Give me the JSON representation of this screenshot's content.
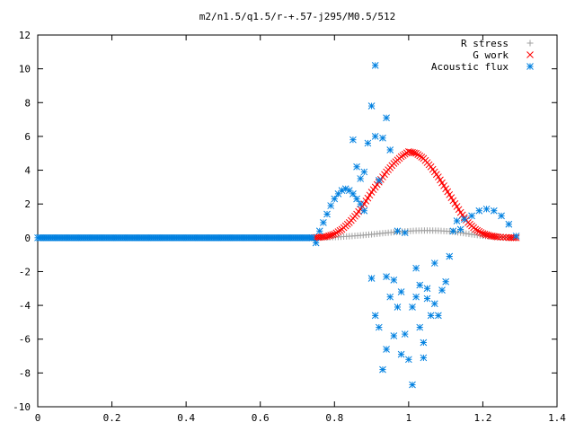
{
  "chart_data": {
    "type": "scatter",
    "title": "m2/n1.5/q1.5/r-+.57-j295/M0.5/512",
    "xlabel": "",
    "ylabel": "",
    "xlim": [
      0,
      1.4
    ],
    "ylim": [
      -10,
      12
    ],
    "xticks": [
      "0",
      "0.2",
      "0.4",
      "0.6",
      "0.8",
      "1",
      "1.2",
      "1.4"
    ],
    "yticks": [
      "-10",
      "-8",
      "-6",
      "-4",
      "-2",
      "0",
      "2",
      "4",
      "6",
      "8",
      "10",
      "12"
    ],
    "grid": false,
    "legend_position": "top-right",
    "series": [
      {
        "name": "R stress",
        "marker": "plus",
        "color": "#a0a0a0",
        "points": [
          [
            0.75,
            0.0
          ],
          [
            0.78,
            0.02
          ],
          [
            0.81,
            0.05
          ],
          [
            0.84,
            0.09
          ],
          [
            0.87,
            0.14
          ],
          [
            0.9,
            0.2
          ],
          [
            0.93,
            0.27
          ],
          [
            0.96,
            0.33
          ],
          [
            0.99,
            0.38
          ],
          [
            1.02,
            0.42
          ],
          [
            1.05,
            0.43
          ],
          [
            1.08,
            0.42
          ],
          [
            1.11,
            0.38
          ],
          [
            1.14,
            0.3
          ],
          [
            1.17,
            0.2
          ],
          [
            1.2,
            0.12
          ],
          [
            1.23,
            0.06
          ],
          [
            1.26,
            0.02
          ],
          [
            1.29,
            0.0
          ]
        ]
      },
      {
        "name": "G work",
        "marker": "cross",
        "color": "#ff0000",
        "points": [
          [
            0.74,
            0.0
          ],
          [
            0.76,
            0.03
          ],
          [
            0.78,
            0.08
          ],
          [
            0.8,
            0.22
          ],
          [
            0.82,
            0.5
          ],
          [
            0.84,
            0.9
          ],
          [
            0.86,
            1.4
          ],
          [
            0.88,
            2.0
          ],
          [
            0.9,
            2.7
          ],
          [
            0.92,
            3.3
          ],
          [
            0.94,
            3.9
          ],
          [
            0.96,
            4.4
          ],
          [
            0.98,
            4.8
          ],
          [
            1.0,
            5.1
          ],
          [
            1.02,
            5.0
          ],
          [
            1.04,
            4.7
          ],
          [
            1.06,
            4.2
          ],
          [
            1.08,
            3.6
          ],
          [
            1.1,
            2.9
          ],
          [
            1.12,
            2.2
          ],
          [
            1.14,
            1.5
          ],
          [
            1.16,
            0.9
          ],
          [
            1.18,
            0.5
          ],
          [
            1.2,
            0.25
          ],
          [
            1.22,
            0.12
          ],
          [
            1.24,
            0.05
          ],
          [
            1.27,
            0.01
          ],
          [
            1.29,
            0.0
          ]
        ]
      },
      {
        "name": "Acoustic flux",
        "marker": "star",
        "color": "#0080e0",
        "points": [
          [
            0.0,
            0.0
          ],
          [
            0.05,
            0.0
          ],
          [
            0.1,
            0.0
          ],
          [
            0.15,
            0.0
          ],
          [
            0.2,
            0.0
          ],
          [
            0.25,
            0.0
          ],
          [
            0.3,
            0.0
          ],
          [
            0.35,
            0.0
          ],
          [
            0.4,
            0.0
          ],
          [
            0.45,
            0.0
          ],
          [
            0.5,
            0.0
          ],
          [
            0.55,
            0.0
          ],
          [
            0.6,
            0.0
          ],
          [
            0.65,
            0.0
          ],
          [
            0.7,
            0.0
          ],
          [
            0.74,
            0.0
          ],
          [
            0.75,
            -0.3
          ],
          [
            0.76,
            0.4
          ],
          [
            0.77,
            0.9
          ],
          [
            0.78,
            1.4
          ],
          [
            0.79,
            1.9
          ],
          [
            0.8,
            2.3
          ],
          [
            0.81,
            2.6
          ],
          [
            0.82,
            2.8
          ],
          [
            0.83,
            2.9
          ],
          [
            0.84,
            2.8
          ],
          [
            0.85,
            2.6
          ],
          [
            0.86,
            2.3
          ],
          [
            0.87,
            2.0
          ],
          [
            0.88,
            1.6
          ],
          [
            0.85,
            5.8
          ],
          [
            0.86,
            4.2
          ],
          [
            0.87,
            3.5
          ],
          [
            0.88,
            3.9
          ],
          [
            0.89,
            5.6
          ],
          [
            0.9,
            7.8
          ],
          [
            0.91,
            10.2
          ],
          [
            0.91,
            6.0
          ],
          [
            0.92,
            3.4
          ],
          [
            0.93,
            5.9
          ],
          [
            0.94,
            7.1
          ],
          [
            0.95,
            5.2
          ],
          [
            0.9,
            -2.4
          ],
          [
            0.91,
            -4.6
          ],
          [
            0.92,
            -5.3
          ],
          [
            0.93,
            -7.8
          ],
          [
            0.94,
            -6.6
          ],
          [
            0.94,
            -2.3
          ],
          [
            0.95,
            -3.5
          ],
          [
            0.96,
            -5.8
          ],
          [
            0.97,
            -4.1
          ],
          [
            0.98,
            -6.9
          ],
          [
            0.99,
            -5.7
          ],
          [
            1.0,
            -7.2
          ],
          [
            1.01,
            -8.7
          ],
          [
            1.01,
            -4.1
          ],
          [
            1.02,
            -3.5
          ],
          [
            1.03,
            -5.3
          ],
          [
            1.04,
            -7.1
          ],
          [
            1.04,
            -6.2
          ],
          [
            1.05,
            -3.6
          ],
          [
            1.06,
            -4.6
          ],
          [
            1.07,
            -3.9
          ],
          [
            1.08,
            -4.6
          ],
          [
            1.09,
            -3.1
          ],
          [
            1.1,
            -2.6
          ],
          [
            1.11,
            -1.1
          ],
          [
            1.12,
            0.4
          ],
          [
            1.13,
            1.0
          ],
          [
            1.14,
            0.5
          ],
          [
            1.15,
            1.1
          ],
          [
            1.17,
            1.3
          ],
          [
            1.19,
            1.6
          ],
          [
            1.21,
            1.7
          ],
          [
            1.23,
            1.6
          ],
          [
            1.25,
            1.3
          ],
          [
            1.27,
            0.8
          ],
          [
            1.29,
            0.1
          ],
          [
            0.97,
            0.4
          ],
          [
            0.99,
            0.3
          ],
          [
            1.02,
            -1.8
          ],
          [
            1.03,
            -2.8
          ],
          [
            1.05,
            -3.0
          ],
          [
            1.07,
            -1.5
          ],
          [
            0.96,
            -2.5
          ],
          [
            0.98,
            -3.2
          ]
        ]
      }
    ]
  }
}
